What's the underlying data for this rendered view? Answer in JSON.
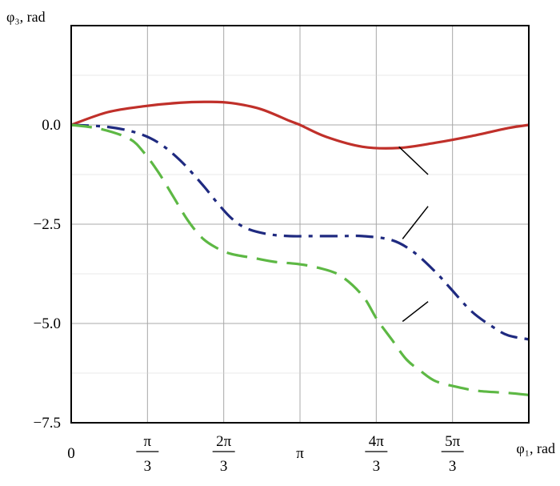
{
  "chart_data": {
    "type": "line",
    "xlabel": "φ₁, rad",
    "ylabel": "φ₃, rad",
    "xlim": [
      0,
      6.2832
    ],
    "ylim": [
      -7.5,
      2.5
    ],
    "grid": true,
    "x_ticks": [
      {
        "value": 0,
        "num": "0",
        "den": ""
      },
      {
        "value": 1.0472,
        "num": "π",
        "den": "3"
      },
      {
        "value": 2.0944,
        "num": "2π",
        "den": "3"
      },
      {
        "value": 3.1416,
        "num": "π",
        "den": ""
      },
      {
        "value": 4.1888,
        "num": "4π",
        "den": "3"
      },
      {
        "value": 5.236,
        "num": "5π",
        "den": "3"
      }
    ],
    "y_ticks": [
      {
        "value": 0,
        "label": "0.0"
      },
      {
        "value": -2.5,
        "label": "−2.5"
      },
      {
        "value": -5,
        "label": "−5.0"
      },
      {
        "value": -7.5,
        "label": "−7.5"
      }
    ],
    "series": [
      {
        "color": "#c0302a",
        "dash": "solid",
        "x": [
          0,
          0.5,
          1.0,
          1.5,
          1.9,
          2.2,
          2.6,
          3.0,
          3.1416,
          3.5,
          4.0,
          4.5,
          5.0,
          5.5,
          6.0,
          6.2832
        ],
        "y": [
          0,
          0.32,
          0.47,
          0.56,
          0.58,
          0.55,
          0.4,
          0.1,
          0,
          -0.3,
          -0.55,
          -0.58,
          -0.45,
          -0.28,
          -0.08,
          0
        ]
      },
      {
        "color": "#1f2a80",
        "dash": "dashdot",
        "x": [
          0,
          0.5,
          0.9,
          1.2,
          1.5,
          1.8,
          2.0,
          2.2,
          2.4,
          2.7,
          3.0,
          3.3,
          3.7,
          4.0,
          4.4,
          4.7,
          5.0,
          5.2,
          5.5,
          5.8,
          6.0,
          6.2832
        ],
        "y": [
          0,
          -0.05,
          -0.2,
          -0.45,
          -0.9,
          -1.5,
          -1.95,
          -2.35,
          -2.6,
          -2.75,
          -2.8,
          -2.8,
          -2.8,
          -2.8,
          -2.9,
          -3.2,
          -3.7,
          -4.1,
          -4.7,
          -5.1,
          -5.3,
          -5.4
        ]
      },
      {
        "color": "#5db844",
        "dash": "dashed",
        "x": [
          0,
          0.4,
          0.8,
          1.0,
          1.2,
          1.4,
          1.6,
          1.8,
          2.0,
          2.2,
          2.5,
          2.8,
          3.1,
          3.4,
          3.7,
          4.0,
          4.2,
          4.4,
          4.6,
          4.8,
          5.0,
          5.3,
          5.6,
          6.0,
          6.2832
        ],
        "y": [
          0,
          -0.1,
          -0.35,
          -0.7,
          -1.2,
          -1.8,
          -2.4,
          -2.85,
          -3.1,
          -3.25,
          -3.35,
          -3.45,
          -3.5,
          -3.6,
          -3.8,
          -4.3,
          -4.9,
          -5.4,
          -5.9,
          -6.2,
          -6.45,
          -6.6,
          -6.7,
          -6.75,
          -6.8
        ]
      }
    ],
    "leader_lines": [
      {
        "from": [
          4.5,
          -0.55
        ],
        "to": [
          4.9,
          -1.25
        ]
      },
      {
        "from": [
          4.55,
          -2.87
        ],
        "to": [
          4.9,
          -2.05
        ]
      },
      {
        "from": [
          4.55,
          -4.95
        ],
        "to": [
          4.9,
          -4.45
        ]
      }
    ]
  }
}
